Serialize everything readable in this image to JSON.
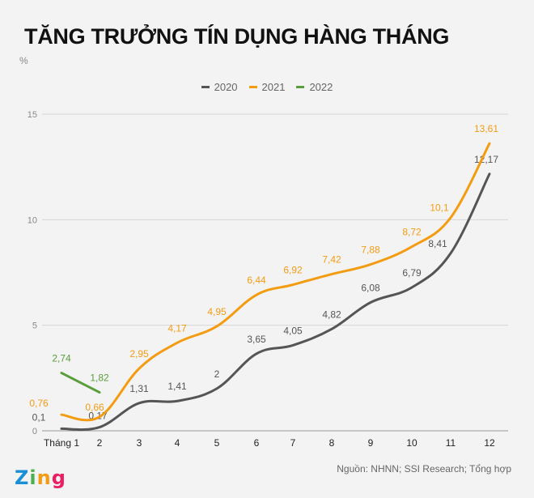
{
  "title": "TĂNG TRƯỞNG TÍN DỤNG HÀNG THÁNG",
  "unit": "%",
  "source": "Nguồn: NHNN; SSI Research; Tổng hợp",
  "logo": {
    "letters": [
      "Z",
      "i",
      "n",
      "g"
    ],
    "colors": [
      "#1a8fd6",
      "#4caf50",
      "#f39c12",
      "#e91e63"
    ]
  },
  "chart_data": {
    "type": "line",
    "title": "TĂNG TRƯỞNG TÍN DỤNG HÀNG THÁNG",
    "xlabel": "",
    "ylabel": "%",
    "categories": [
      "Tháng 1",
      "2",
      "3",
      "4",
      "5",
      "6",
      "7",
      "8",
      "9",
      "10",
      "11",
      "12"
    ],
    "ylim": [
      0,
      15
    ],
    "yticks": [
      0,
      5,
      10,
      15
    ],
    "grid": true,
    "legend_position": "top-center",
    "series": [
      {
        "name": "2020",
        "color": "#555555",
        "values": [
          0.1,
          0.17,
          1.31,
          1.41,
          2,
          3.65,
          4.05,
          4.82,
          6.08,
          6.79,
          8.41,
          12.17
        ],
        "labels": [
          "0,1",
          "0,17",
          "1,31",
          "1,41",
          "2",
          "3,65",
          "4,05",
          "4,82",
          "6,08",
          "6,79",
          "8,41",
          "12,17"
        ]
      },
      {
        "name": "2021",
        "color": "#f39c12",
        "values": [
          0.76,
          0.66,
          2.95,
          4.17,
          4.95,
          6.44,
          6.92,
          7.42,
          7.88,
          8.72,
          10.1,
          13.61
        ],
        "labels": [
          "0,76",
          "0,66",
          "2,95",
          "4,17",
          "4,95",
          "6,44",
          "6,92",
          "7,42",
          "7,88",
          "8,72",
          "10,1",
          "13,61"
        ]
      },
      {
        "name": "2022",
        "color": "#5a9e3c",
        "values": [
          2.74,
          1.82
        ],
        "labels": [
          "2,74",
          "1,82"
        ]
      }
    ]
  }
}
